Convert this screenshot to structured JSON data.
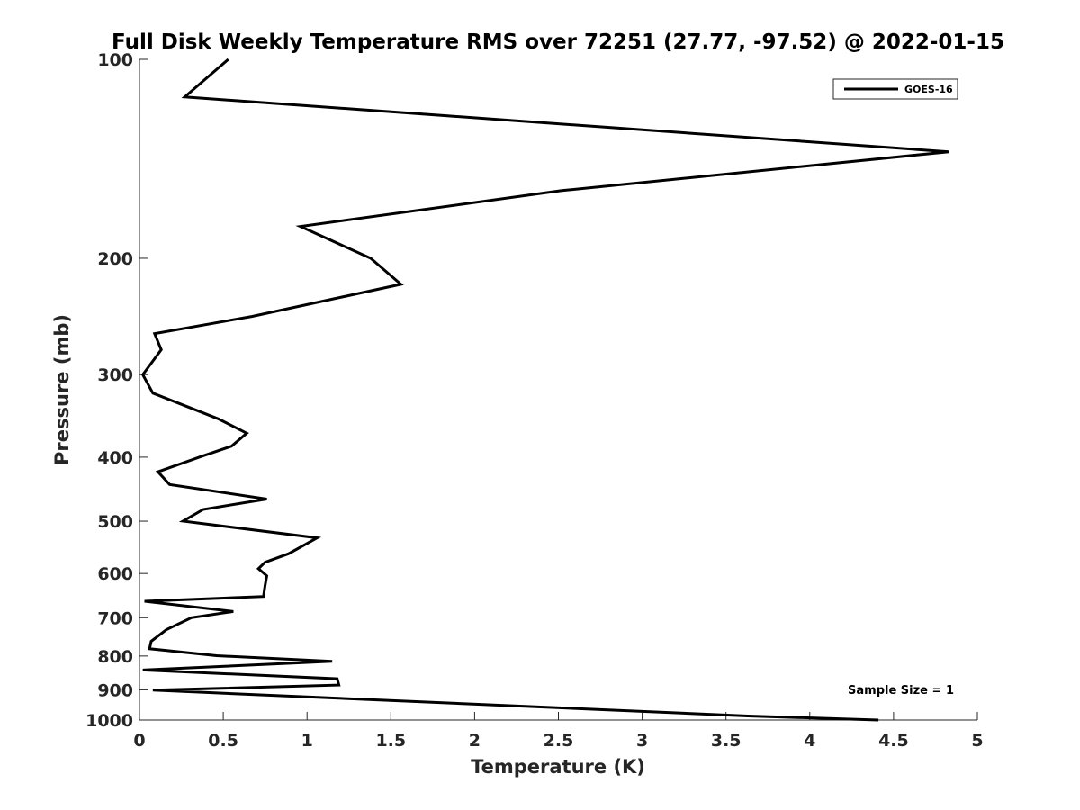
{
  "chart_data": {
    "type": "line",
    "title": "Full Disk Weekly Temperature RMS over 72251 (27.77, -97.52) @ 2022-01-15",
    "xlabel": "Temperature (K)",
    "ylabel": "Pressure (mb)",
    "xlim": [
      0,
      5
    ],
    "ylim": [
      100,
      1000
    ],
    "y_scale": "log",
    "y_reversed": true,
    "x_ticks": [
      "0",
      "0.5",
      "1",
      "1.5",
      "2",
      "2.5",
      "3",
      "3.5",
      "4",
      "4.5",
      "5"
    ],
    "y_ticks": [
      "100",
      "200",
      "300",
      "400",
      "500",
      "600",
      "700",
      "800",
      "900",
      "1000"
    ],
    "grid": false,
    "legend_position": "top-right",
    "series": [
      {
        "name": "GOES-16",
        "color": "#000000",
        "x": [
          0.53,
          0.27,
          4.83,
          2.52,
          0.96,
          1.38,
          1.56,
          0.67,
          0.09,
          0.13,
          0.02,
          0.08,
          0.47,
          0.64,
          0.55,
          0.37,
          0.11,
          0.18,
          0.76,
          0.38,
          0.26,
          1.06,
          0.89,
          0.75,
          0.71,
          0.76,
          0.75,
          0.74,
          0.03,
          0.56,
          0.31,
          0.16,
          0.07,
          0.06,
          0.46,
          1.15,
          0.02,
          1.18,
          1.19,
          0.08,
          3.63,
          4.41
        ],
        "y": [
          100,
          114,
          138,
          158,
          179,
          200,
          219,
          245,
          260,
          275,
          300,
          320,
          350,
          368,
          385,
          399,
          421,
          440,
          463,
          480,
          500,
          530,
          560,
          577,
          590,
          605,
          625,
          650,
          661,
          685,
          700,
          730,
          760,
          780,
          799,
          815,
          840,
          866,
          885,
          901,
          986,
          1000
        ]
      }
    ],
    "annotations": [
      "Sample Size = 1"
    ]
  }
}
